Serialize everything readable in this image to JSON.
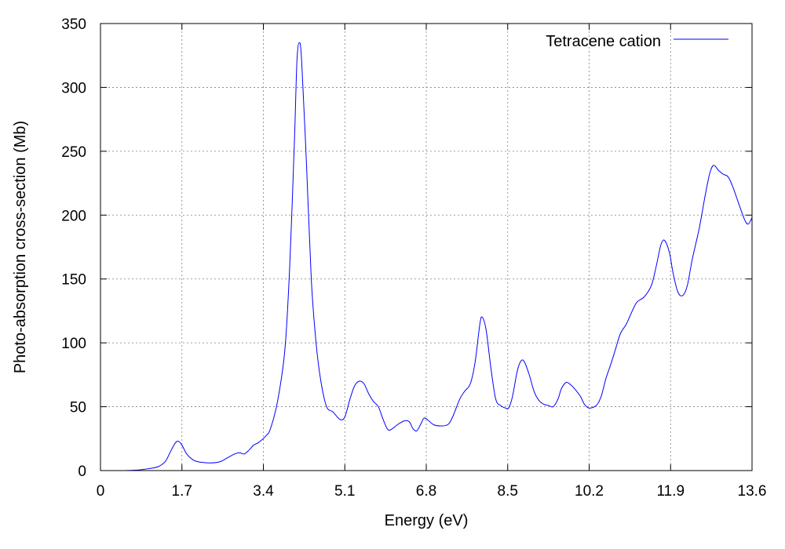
{
  "chart_data": {
    "type": "line",
    "xlabel": "Energy (eV)",
    "ylabel": "Photo-absorption cross-section (Mb)",
    "xlim": [
      0,
      13.6
    ],
    "ylim": [
      0,
      350
    ],
    "grid": true,
    "legend_position": "top-right",
    "x_ticks": [
      "0",
      "1.7",
      "3.4",
      "5.1",
      "6.8",
      "8.5",
      "10.2",
      "11.9",
      "13.6"
    ],
    "x_tick_values": [
      0,
      1.7,
      3.4,
      5.1,
      6.8,
      8.5,
      10.2,
      11.9,
      13.6
    ],
    "y_ticks": [
      "0",
      "50",
      "100",
      "150",
      "200",
      "250",
      "300",
      "350"
    ],
    "y_tick_values": [
      0,
      50,
      100,
      150,
      200,
      250,
      300,
      350
    ],
    "series": [
      {
        "name": "Tetracene cation",
        "color": "#0000ff",
        "points": [
          [
            0.5,
            0
          ],
          [
            0.8,
            0.5
          ],
          [
            1.0,
            1.5
          ],
          [
            1.2,
            3
          ],
          [
            1.35,
            7
          ],
          [
            1.45,
            14
          ],
          [
            1.55,
            21
          ],
          [
            1.62,
            23
          ],
          [
            1.7,
            20
          ],
          [
            1.8,
            13
          ],
          [
            1.95,
            8
          ],
          [
            2.1,
            6.5
          ],
          [
            2.3,
            6
          ],
          [
            2.5,
            7
          ],
          [
            2.65,
            10
          ],
          [
            2.8,
            13
          ],
          [
            2.9,
            14
          ],
          [
            3.0,
            13
          ],
          [
            3.1,
            16
          ],
          [
            3.2,
            20
          ],
          [
            3.3,
            22
          ],
          [
            3.45,
            27
          ],
          [
            3.55,
            33
          ],
          [
            3.7,
            55
          ],
          [
            3.85,
            95
          ],
          [
            3.95,
            160
          ],
          [
            4.05,
            260
          ],
          [
            4.1,
            320
          ],
          [
            4.15,
            335
          ],
          [
            4.2,
            320
          ],
          [
            4.3,
            240
          ],
          [
            4.4,
            150
          ],
          [
            4.5,
            100
          ],
          [
            4.6,
            70
          ],
          [
            4.72,
            50
          ],
          [
            4.85,
            46
          ],
          [
            5.0,
            40
          ],
          [
            5.1,
            42
          ],
          [
            5.2,
            55
          ],
          [
            5.3,
            66
          ],
          [
            5.4,
            70
          ],
          [
            5.5,
            68
          ],
          [
            5.6,
            60
          ],
          [
            5.7,
            54
          ],
          [
            5.8,
            50
          ],
          [
            5.9,
            40
          ],
          [
            6.0,
            32
          ],
          [
            6.1,
            33
          ],
          [
            6.2,
            36
          ],
          [
            6.35,
            39
          ],
          [
            6.45,
            38
          ],
          [
            6.52,
            33
          ],
          [
            6.6,
            31
          ],
          [
            6.68,
            36
          ],
          [
            6.75,
            41
          ],
          [
            6.82,
            40
          ],
          [
            6.95,
            36
          ],
          [
            7.1,
            35
          ],
          [
            7.25,
            36
          ],
          [
            7.35,
            42
          ],
          [
            7.5,
            56
          ],
          [
            7.6,
            62
          ],
          [
            7.72,
            68
          ],
          [
            7.82,
            85
          ],
          [
            7.92,
            115
          ],
          [
            7.97,
            120
          ],
          [
            8.05,
            110
          ],
          [
            8.15,
            80
          ],
          [
            8.25,
            56
          ],
          [
            8.35,
            51
          ],
          [
            8.45,
            49
          ],
          [
            8.52,
            49
          ],
          [
            8.6,
            58
          ],
          [
            8.7,
            78
          ],
          [
            8.78,
            86
          ],
          [
            8.85,
            85
          ],
          [
            8.95,
            75
          ],
          [
            9.05,
            62
          ],
          [
            9.15,
            55
          ],
          [
            9.25,
            52
          ],
          [
            9.35,
            51
          ],
          [
            9.45,
            50
          ],
          [
            9.55,
            56
          ],
          [
            9.62,
            64
          ],
          [
            9.72,
            69
          ],
          [
            9.82,
            67
          ],
          [
            9.92,
            63
          ],
          [
            10.02,
            58
          ],
          [
            10.1,
            52
          ],
          [
            10.2,
            49
          ],
          [
            10.35,
            51
          ],
          [
            10.45,
            58
          ],
          [
            10.55,
            72
          ],
          [
            10.65,
            83
          ],
          [
            10.75,
            95
          ],
          [
            10.85,
            107
          ],
          [
            10.98,
            115
          ],
          [
            11.1,
            125
          ],
          [
            11.2,
            132
          ],
          [
            11.35,
            136
          ],
          [
            11.5,
            145
          ],
          [
            11.6,
            160
          ],
          [
            11.7,
            177
          ],
          [
            11.78,
            180
          ],
          [
            11.88,
            170
          ],
          [
            11.95,
            155
          ],
          [
            12.05,
            140
          ],
          [
            12.15,
            137
          ],
          [
            12.25,
            145
          ],
          [
            12.35,
            165
          ],
          [
            12.5,
            190
          ],
          [
            12.62,
            215
          ],
          [
            12.72,
            233
          ],
          [
            12.8,
            239
          ],
          [
            12.9,
            235
          ],
          [
            13.0,
            232
          ],
          [
            13.1,
            230
          ],
          [
            13.2,
            222
          ],
          [
            13.35,
            206
          ],
          [
            13.45,
            196
          ],
          [
            13.52,
            193
          ],
          [
            13.6,
            198
          ]
        ]
      }
    ]
  }
}
